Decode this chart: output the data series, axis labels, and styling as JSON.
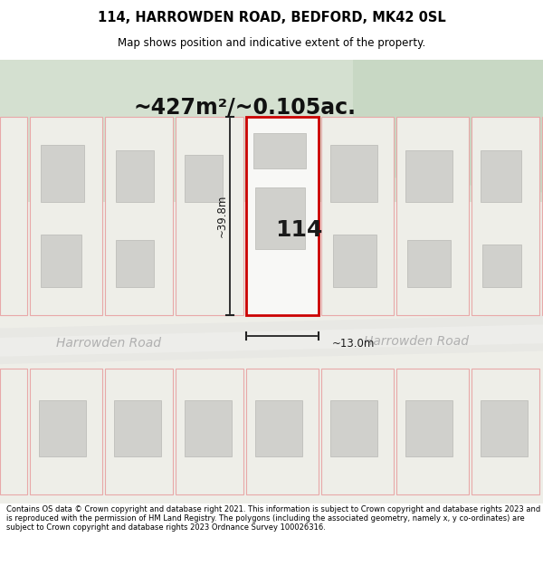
{
  "title_line1": "114, HARROWDEN ROAD, BEDFORD, MK42 0SL",
  "title_line2": "Map shows position and indicative extent of the property.",
  "area_text": "~427m²/~0.105ac.",
  "number_label": "114",
  "dim_height": "~39.8m",
  "dim_width": "~13.0m",
  "road_label1": "Harrowden Road",
  "road_label2": "Harrowden Road",
  "footer_text": "Contains OS data © Crown copyright and database right 2021. This information is subject to Crown copyright and database rights 2023 and is reproduced with the permission of HM Land Registry. The polygons (including the associated geometry, namely x, y co-ordinates) are subject to Crown copyright and database rights 2023 Ordnance Survey 100026316.",
  "bg_map_color": "#eeeee8",
  "bg_green_color": "#d4e0d0",
  "road_color": "#e4e4e0",
  "plot_outline_color": "#cc0000",
  "plot_fill_color": "#f8f8f6",
  "neighbor_outline_color": "#e8a8a8",
  "building_color": "#d0d0cc",
  "dim_line_color": "#222222",
  "footer_bg": "#ffffff"
}
